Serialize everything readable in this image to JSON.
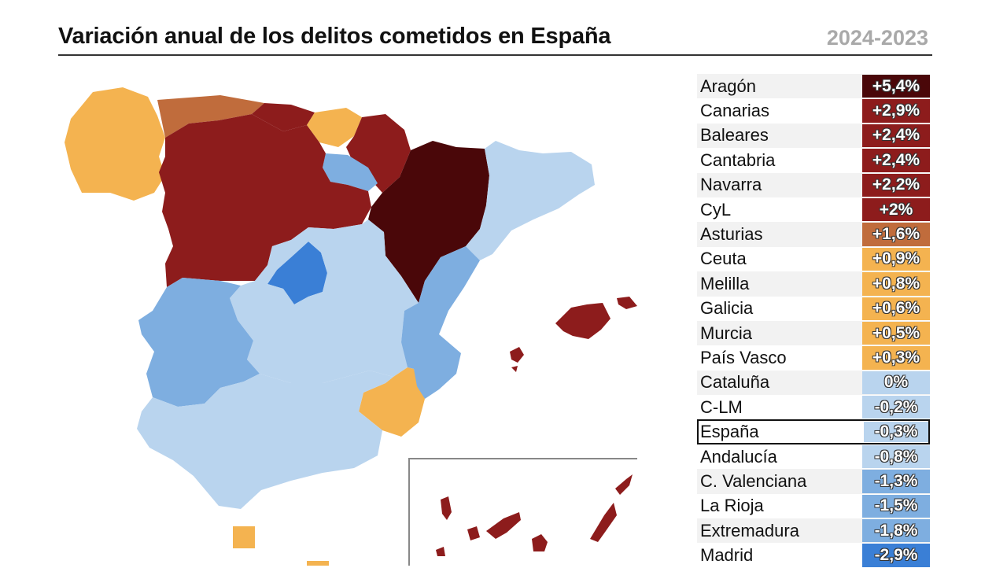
{
  "header": {
    "title": "Variación anual de los delitos cometidos en España",
    "period": "2024-2023"
  },
  "colors": {
    "very_high": "#4a0709",
    "high": "#8d1c1c",
    "mid_high": "#c06c3c",
    "low_pos": "#f4b350",
    "zero": "#b9d4ee",
    "low_neg": "#7eaee0",
    "mid_neg": "#5b95d8",
    "high_neg": "#3a7fd6"
  },
  "chart_data": {
    "type": "table",
    "unit": "%",
    "rows": [
      {
        "region": "Aragón",
        "label": "+5,4%",
        "value": 5.4,
        "color": "#4a0709"
      },
      {
        "region": "Canarias",
        "label": "+2,9%",
        "value": 2.9,
        "color": "#8d1c1c"
      },
      {
        "region": "Baleares",
        "label": "+2,4%",
        "value": 2.4,
        "color": "#8d1c1c"
      },
      {
        "region": "Cantabria",
        "label": "+2,4%",
        "value": 2.4,
        "color": "#8d1c1c"
      },
      {
        "region": "Navarra",
        "label": "+2,2%",
        "value": 2.2,
        "color": "#8d1c1c"
      },
      {
        "region": "CyL",
        "label": "+2%",
        "value": 2.0,
        "color": "#8d1c1c"
      },
      {
        "region": "Asturias",
        "label": "+1,6%",
        "value": 1.6,
        "color": "#c06c3c"
      },
      {
        "region": "Ceuta",
        "label": "+0,9%",
        "value": 0.9,
        "color": "#f4b350"
      },
      {
        "region": "Melilla",
        "label": "+0,8%",
        "value": 0.8,
        "color": "#f4b350"
      },
      {
        "region": "Galicia",
        "label": "+0,6%",
        "value": 0.6,
        "color": "#f4b350"
      },
      {
        "region": "Murcia",
        "label": "+0,5%",
        "value": 0.5,
        "color": "#f4b350"
      },
      {
        "region": "País Vasco",
        "label": "+0,3%",
        "value": 0.3,
        "color": "#f4b350"
      },
      {
        "region": "Cataluña",
        "label": "0%",
        "value": 0.0,
        "color": "#b9d4ee"
      },
      {
        "region": "C-LM",
        "label": "-0,2%",
        "value": -0.2,
        "color": "#b9d4ee"
      },
      {
        "region": "España",
        "label": "-0,3%",
        "value": -0.3,
        "color": "#b9d4ee",
        "highlight": true
      },
      {
        "region": "Andalucía",
        "label": "-0,8%",
        "value": -0.8,
        "color": "#b9d4ee"
      },
      {
        "region": "C. Valenciana",
        "label": "-1,3%",
        "value": -1.3,
        "color": "#7eaee0"
      },
      {
        "region": "La Rioja",
        "label": "-1,5%",
        "value": -1.5,
        "color": "#7eaee0"
      },
      {
        "region": "Extremadura",
        "label": "-1,8%",
        "value": -1.8,
        "color": "#7eaee0"
      },
      {
        "region": "Madrid",
        "label": "-2,9%",
        "value": -2.9,
        "color": "#3a7fd6"
      }
    ]
  }
}
